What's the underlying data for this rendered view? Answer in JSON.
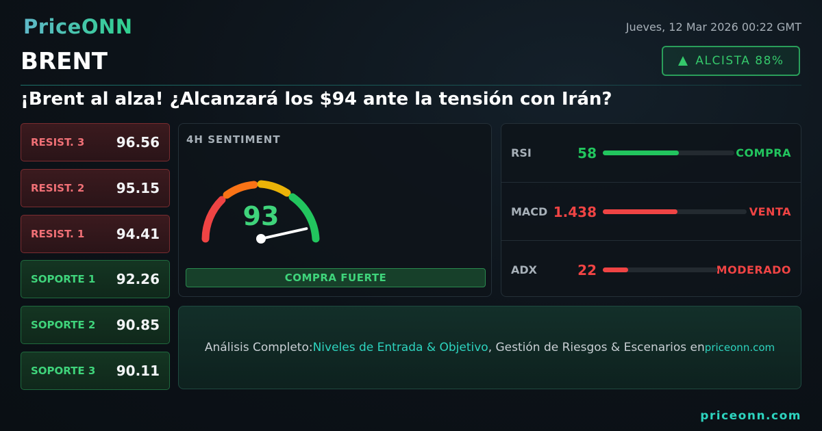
{
  "header": {
    "brand": "PriceONN",
    "date": "Jueves, 12 Mar 2026 00:22 GMT",
    "symbol": "BRENT",
    "trend": "ALCISTA 88%"
  },
  "headline": "¡Brent al alza! ¿Alcanzará los $94 ante la tensión con Irán?",
  "resistances": [
    {
      "label": "RESIST. 3",
      "value": 96.56
    },
    {
      "label": "RESIST. 2",
      "value": 95.15
    },
    {
      "label": "RESIST. 1",
      "value": 94.41
    }
  ],
  "supports": [
    {
      "label": "SOPORTE 1",
      "value": 92.26
    },
    {
      "label": "SOPORTE 2",
      "value": 90.85
    },
    {
      "label": "SOPORTE 3",
      "value": 90.11
    }
  ],
  "sentiment": {
    "title": "4H SENTIMENT",
    "score": 93,
    "range": [
      0,
      100
    ],
    "verdict": "COMPRA FUERTE"
  },
  "indicators": [
    {
      "name": "RSI",
      "value": 58,
      "range": [
        0,
        100
      ],
      "signal": "COMPRA",
      "color": "#22c55e"
    },
    {
      "name": "MACD",
      "value": 1.438,
      "signal": "VENTA",
      "color": "#ef4444"
    },
    {
      "name": "ADX",
      "value": 22,
      "range": [
        0,
        100
      ],
      "signal": "MODERADO",
      "color": "#ef4444"
    }
  ],
  "cta": {
    "lead": "Análisis Completo:",
    "highlight": "Niveles de Entrada & Objetivo",
    "rest": ", Gestión de Riesgos & Escenarios en",
    "site": "priceonn.com"
  },
  "footer": "priceonn.com"
}
